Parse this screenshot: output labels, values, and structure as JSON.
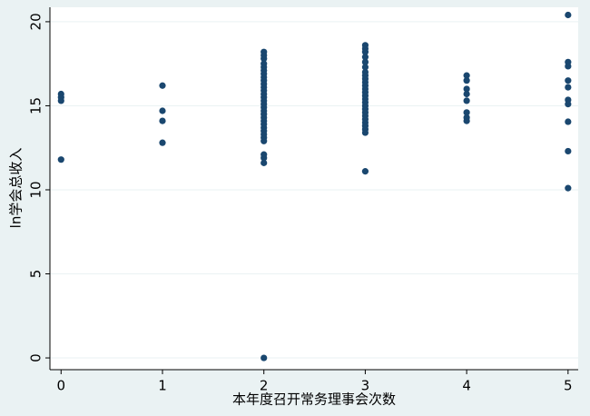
{
  "chart_data": {
    "type": "scatter",
    "x_label": "本年度召开常务理事会次数",
    "y_label": "ln学会总收入",
    "color": "#1a476f",
    "grid": true,
    "xlim": [
      -0.11,
      5.1
    ],
    "ylim": [
      -0.7,
      20.86
    ],
    "xticks": [
      0,
      1,
      2,
      3,
      4,
      5
    ],
    "yticks": [
      0,
      5,
      10,
      15,
      20
    ],
    "x": [
      0,
      0,
      0,
      0,
      1,
      1,
      1,
      1,
      2,
      2,
      2,
      2,
      2,
      2,
      2,
      2,
      2,
      2,
      2,
      2,
      2,
      2,
      2,
      2,
      2,
      2,
      2,
      2,
      2,
      2,
      2,
      2,
      2,
      2,
      2,
      2,
      2,
      2,
      2,
      3,
      3,
      3,
      3,
      3,
      3,
      3,
      3,
      3,
      3,
      3,
      3,
      3,
      3,
      3,
      3,
      3,
      3,
      3,
      3,
      3,
      3,
      3,
      3,
      3,
      3,
      4,
      4,
      4,
      4,
      4,
      4,
      4,
      4,
      5,
      5,
      5,
      5,
      5,
      5,
      5,
      5,
      5,
      5
    ],
    "values": [
      15.7,
      15.5,
      15.3,
      11.8,
      16.2,
      14.7,
      14.1,
      12.8,
      18.2,
      18.0,
      17.8,
      17.5,
      17.3,
      17.1,
      16.9,
      16.7,
      16.5,
      16.3,
      16.1,
      15.9,
      15.7,
      15.5,
      15.3,
      15.1,
      14.9,
      14.7,
      14.5,
      14.3,
      14.1,
      13.9,
      13.7,
      13.5,
      13.3,
      13.1,
      12.9,
      12.1,
      11.9,
      11.6,
      0,
      18.6,
      18.4,
      18.2,
      17.9,
      17.6,
      17.3,
      17.0,
      16.8,
      16.6,
      16.4,
      16.2,
      16.0,
      15.8,
      15.6,
      15.4,
      15.2,
      15.0,
      14.8,
      14.6,
      14.4,
      14.2,
      14.0,
      13.8,
      13.6,
      13.4,
      11.1,
      16.8,
      16.5,
      16.0,
      15.7,
      15.3,
      14.6,
      14.3,
      14.1,
      20.4,
      17.6,
      17.35,
      16.5,
      16.1,
      15.35,
      15.1,
      14.05,
      12.3,
      10.1
    ]
  }
}
